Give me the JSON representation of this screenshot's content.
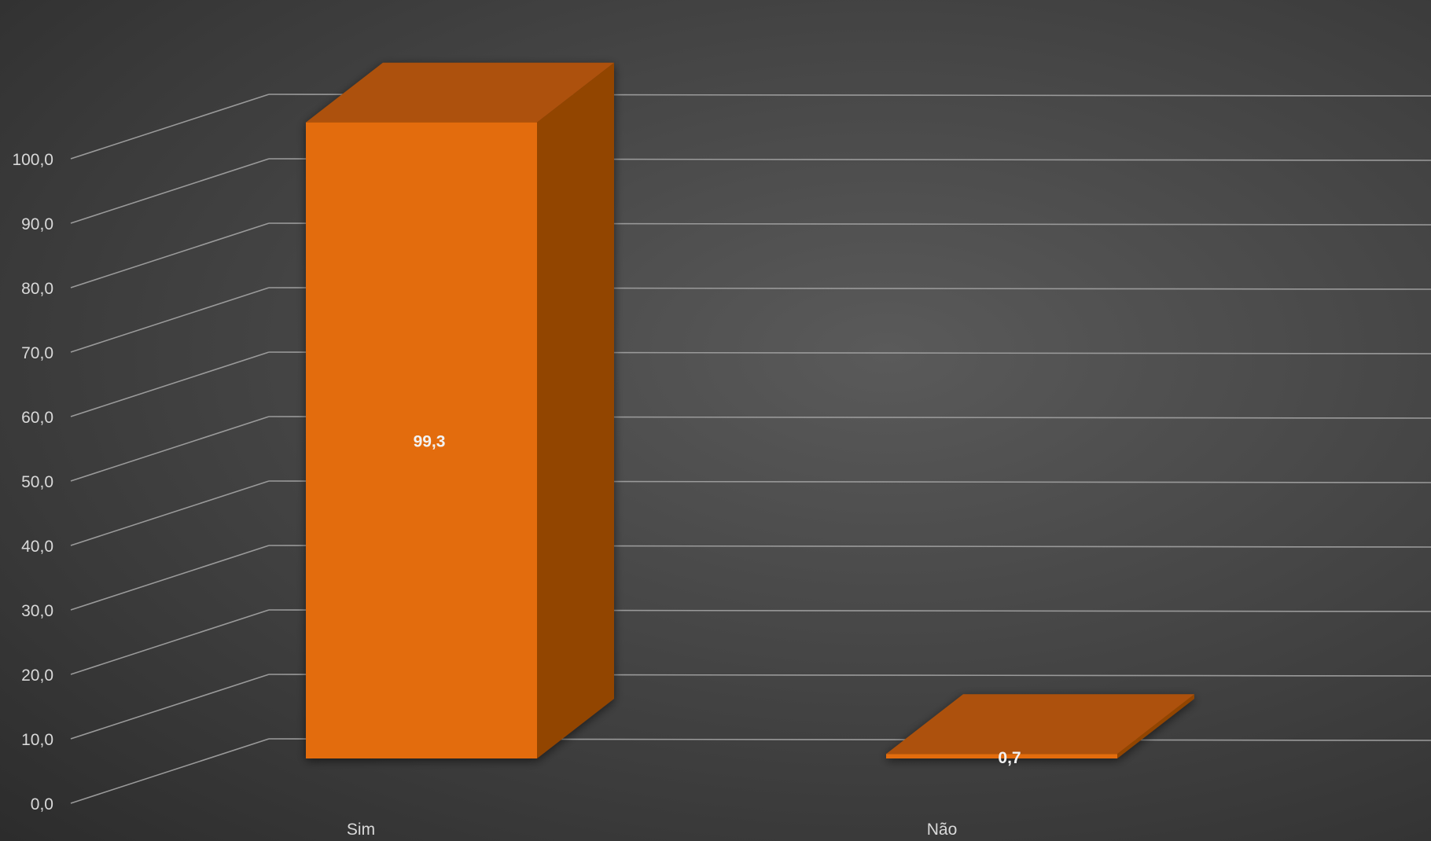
{
  "chart_data": {
    "type": "bar",
    "style": "3d-column",
    "categories": [
      "Sim",
      "Não"
    ],
    "values": [
      99.3,
      0.7
    ],
    "value_labels": [
      "99,3",
      "0,7"
    ],
    "ylim": [
      0,
      100
    ],
    "y_ticks": [
      0,
      10,
      20,
      30,
      40,
      50,
      60,
      70,
      80,
      90,
      100
    ],
    "y_tick_labels": [
      "0,0",
      "10,0",
      "20,0",
      "30,0",
      "40,0",
      "50,0",
      "60,0",
      "70,0",
      "80,0",
      "90,0",
      "100,0"
    ],
    "grid": true,
    "legend": "none",
    "colors": {
      "bar_front": "#e36c0a",
      "bar_top": "#ad5108",
      "bar_side": "#924404",
      "grid": "#9a9a9a",
      "text": "#d9d9d9",
      "data_label": "#f2f2f2"
    }
  }
}
